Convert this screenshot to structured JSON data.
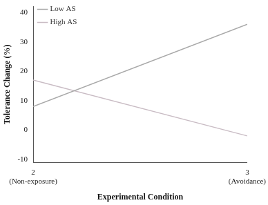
{
  "chart_data": {
    "type": "line",
    "x_label": "Experimental Condition",
    "y_label": "Tolerance Change (%)",
    "x": [
      2,
      3
    ],
    "series": [
      {
        "name": "Low AS",
        "color": "#a9a9a9",
        "values": [
          8,
          36
        ]
      },
      {
        "name": "High AS",
        "color": "#c9bcc4",
        "values": [
          17,
          -2
        ]
      }
    ],
    "xlim": [
      2,
      3
    ],
    "xticks": [
      {
        "value": 2,
        "label": "2\n(Non-exposure)"
      },
      {
        "value": 3,
        "label": "3\n(Avoidance)"
      }
    ],
    "ylim": [
      -11,
      42
    ],
    "yticks": [
      -10,
      0,
      10,
      20,
      30,
      40
    ],
    "grid": false,
    "legend": "upper left"
  }
}
